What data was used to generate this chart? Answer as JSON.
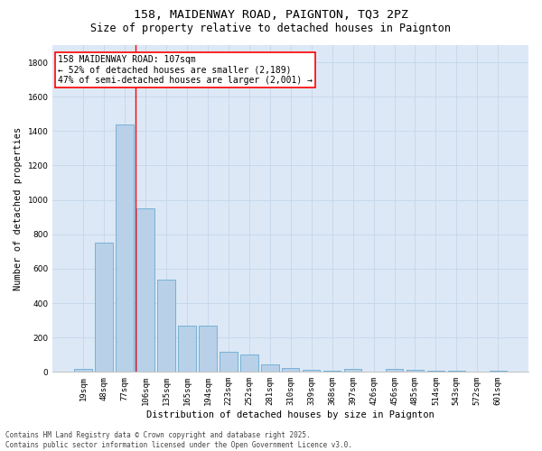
{
  "title1": "158, MAIDENWAY ROAD, PAIGNTON, TQ3 2PZ",
  "title2": "Size of property relative to detached houses in Paignton",
  "xlabel": "Distribution of detached houses by size in Paignton",
  "ylabel": "Number of detached properties",
  "categories": [
    "19sqm",
    "48sqm",
    "77sqm",
    "106sqm",
    "135sqm",
    "165sqm",
    "194sqm",
    "223sqm",
    "252sqm",
    "281sqm",
    "310sqm",
    "339sqm",
    "368sqm",
    "397sqm",
    "426sqm",
    "456sqm",
    "485sqm",
    "514sqm",
    "543sqm",
    "572sqm",
    "601sqm"
  ],
  "values": [
    20,
    750,
    1440,
    950,
    535,
    270,
    270,
    115,
    100,
    45,
    25,
    10,
    5,
    15,
    0,
    15,
    10,
    5,
    5,
    0,
    5
  ],
  "bar_color": "#b8d0e8",
  "bar_edge_color": "#6aaad4",
  "grid_color": "#c8d8ec",
  "background_color": "#dce8f5",
  "annotation_box_text": "158 MAIDENWAY ROAD: 107sqm\n← 52% of detached houses are smaller (2,189)\n47% of semi-detached houses are larger (2,001) →",
  "annotation_box_color": "white",
  "annotation_box_edge_color": "red",
  "annotation_line_color": "red",
  "ylim": [
    0,
    1900
  ],
  "yticks": [
    0,
    200,
    400,
    600,
    800,
    1000,
    1200,
    1400,
    1600,
    1800
  ],
  "footnote": "Contains HM Land Registry data © Crown copyright and database right 2025.\nContains public sector information licensed under the Open Government Licence v3.0.",
  "title_fontsize": 9.5,
  "subtitle_fontsize": 8.5,
  "axis_label_fontsize": 7.5,
  "tick_fontsize": 6.5,
  "annotation_fontsize": 7,
  "footnote_fontsize": 5.5
}
